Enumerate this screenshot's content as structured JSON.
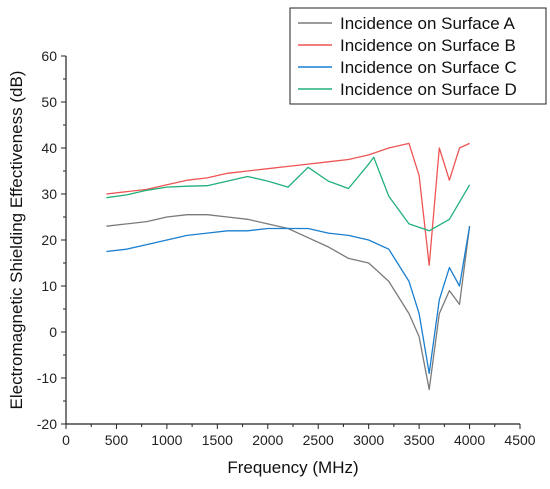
{
  "chart_data": {
    "type": "line",
    "xlabel": "Frequency (MHz)",
    "ylabel": "Electromagnetic Shielding Effectiveness (dB)",
    "xlim": [
      0,
      4500
    ],
    "ylim": [
      -20,
      60
    ],
    "xticks": [
      0,
      500,
      1000,
      1500,
      2000,
      2500,
      3000,
      3500,
      4000,
      4500
    ],
    "yticks": [
      -20,
      -10,
      0,
      10,
      20,
      30,
      40,
      50,
      60
    ],
    "legend_position": "top-right",
    "grid": false,
    "series": [
      {
        "name": "Incidence on Surface A",
        "color": "#7a7a7a",
        "x": [
          400,
          600,
          800,
          1000,
          1200,
          1400,
          1600,
          1800,
          2000,
          2200,
          2400,
          2600,
          2800,
          3000,
          3200,
          3400,
          3500,
          3600,
          3700,
          3800,
          3900,
          4000
        ],
        "y": [
          23,
          23.5,
          24,
          25,
          25.5,
          25.5,
          25,
          24.5,
          23.5,
          22.5,
          20.5,
          18.5,
          16,
          15,
          11,
          4,
          -1,
          -12.5,
          4,
          9,
          6,
          23
        ]
      },
      {
        "name": "Incidence on Surface B",
        "color": "#ee5555",
        "x": [
          400,
          600,
          800,
          1000,
          1200,
          1400,
          1600,
          1800,
          2000,
          2200,
          2400,
          2600,
          2800,
          3000,
          3200,
          3400,
          3500,
          3600,
          3700,
          3800,
          3900,
          4000
        ],
        "y": [
          30,
          30.5,
          31,
          32,
          33,
          33.5,
          34.5,
          35,
          35.5,
          36,
          36.5,
          37,
          37.5,
          38.5,
          40,
          41,
          34,
          14.5,
          40,
          33,
          40,
          41
        ]
      },
      {
        "name": "Incidence on Surface C",
        "color": "#1a7fd0",
        "x": [
          400,
          600,
          800,
          1000,
          1200,
          1400,
          1600,
          1800,
          2000,
          2200,
          2400,
          2600,
          2800,
          3000,
          3200,
          3400,
          3500,
          3600,
          3700,
          3800,
          3900,
          4000
        ],
        "y": [
          17.5,
          18,
          19,
          20,
          21,
          21.5,
          22,
          22,
          22.5,
          22.5,
          22.5,
          21.5,
          21,
          20,
          18,
          11,
          4,
          -9,
          7,
          14,
          10,
          23
        ]
      },
      {
        "name": "Incidence on Surface D",
        "color": "#22b07a",
        "x": [
          400,
          600,
          800,
          1000,
          1200,
          1400,
          1600,
          1800,
          2000,
          2200,
          2400,
          2600,
          2800,
          3000,
          3050,
          3200,
          3400,
          3600,
          3800,
          4000
        ],
        "y": [
          29.2,
          29.8,
          30.8,
          31.5,
          31.7,
          31.8,
          32.8,
          33.8,
          32.8,
          31.5,
          35.8,
          32.8,
          31.2,
          36.5,
          38,
          29.5,
          23.5,
          22,
          24.5,
          32
        ]
      }
    ]
  }
}
